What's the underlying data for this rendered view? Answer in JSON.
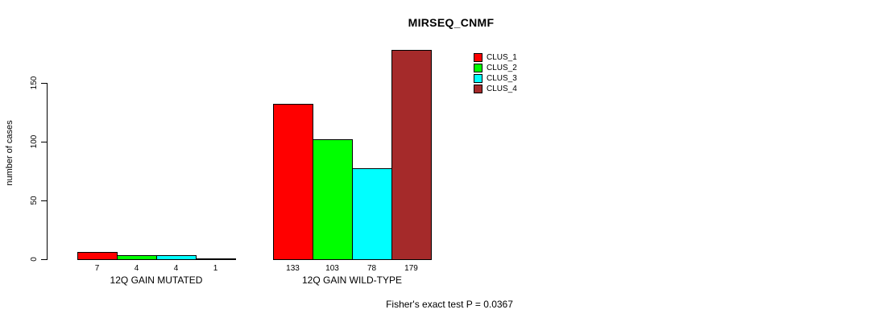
{
  "chart_data": {
    "type": "bar",
    "title": "MIRSEQ_CNMF",
    "ylabel": "number of cases",
    "xlabel": "",
    "annotation": "Fisher's exact test P = 0.0367",
    "categories": [
      "12Q GAIN MUTATED",
      "12Q GAIN WILD-TYPE"
    ],
    "series": [
      {
        "name": "CLUS_1",
        "color": "#ff0000",
        "values": [
          7,
          133
        ]
      },
      {
        "name": "CLUS_2",
        "color": "#00ff00",
        "values": [
          4,
          103
        ]
      },
      {
        "name": "CLUS_3",
        "color": "#00ffff",
        "values": [
          4,
          78
        ]
      },
      {
        "name": "CLUS_4",
        "color": "#a52a2a",
        "values": [
          1,
          179
        ]
      }
    ],
    "yticks": [
      0,
      50,
      100,
      150
    ],
    "ylim": [
      0,
      183
    ],
    "grid": false,
    "legend_position": "top-right",
    "legend_labels": [
      "CLUS_1",
      "CLUS_2",
      "CLUS_3",
      "CLUS_4"
    ],
    "bar_value_labels": [
      [
        7,
        4,
        4,
        1
      ],
      [
        133,
        103,
        78,
        179
      ]
    ],
    "bar_border_color": "#000000",
    "background_color": "#ffffff",
    "text_color": "#000000"
  }
}
